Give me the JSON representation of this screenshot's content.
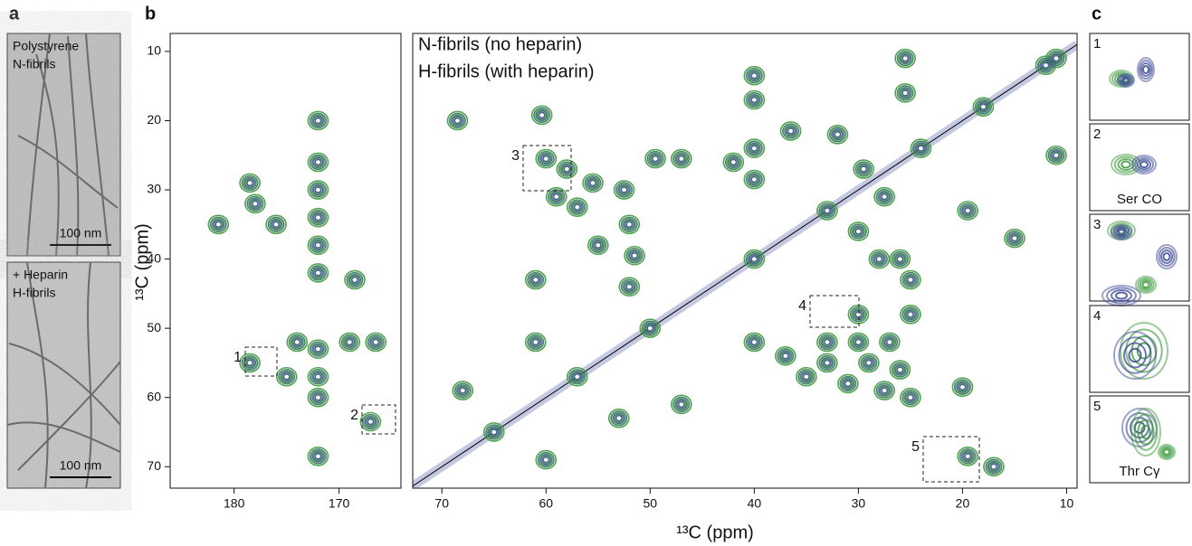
{
  "panel_a": {
    "label": "a",
    "images": [
      {
        "lines": [
          "Polystyrene",
          "N-fibrils"
        ],
        "scale_bar": "100 nm"
      },
      {
        "lines": [
          "+ Heparin",
          "H-fibrils"
        ],
        "scale_bar": "100 nm"
      }
    ]
  },
  "panel_b": {
    "label": "b",
    "boxes": [
      "1",
      "2",
      "3",
      "4",
      "5"
    ]
  },
  "panel_c": {
    "label": "c",
    "insets": [
      {
        "number": "1"
      },
      {
        "number": "2",
        "note": "Ser CO"
      },
      {
        "number": "3"
      },
      {
        "number": "4"
      },
      {
        "number": "5",
        "note": "Thr Cγ"
      }
    ]
  },
  "chart_data": [
    {
      "type": "contour",
      "ylabel": "¹³C (ppm)",
      "xlim": [
        186.1,
        164.1
      ],
      "ylim": [
        7.4,
        73.1
      ],
      "xticks": [
        180,
        170
      ],
      "yticks": [
        10,
        20,
        30,
        40,
        50,
        60,
        70
      ],
      "series": [
        {
          "color": "#3a9a3a",
          "x": [
            181.5,
            178.5,
            178,
            176,
            172,
            172,
            172,
            172,
            172,
            172,
            172,
            172,
            172,
            175,
            169,
            168.5,
            166.5,
            178.5,
            167,
            172,
            174
          ],
          "values": [
            35,
            29,
            32,
            35,
            20,
            26,
            30,
            34,
            38,
            42,
            53,
            57,
            60,
            57,
            52,
            43,
            52,
            55,
            63.5,
            68.5,
            52
          ]
        },
        {
          "color": "#3d4a96",
          "x": [
            181.5,
            178.5,
            178,
            176,
            172,
            172,
            172,
            172,
            172,
            172,
            172,
            172,
            172,
            175,
            169,
            168.5,
            166.5,
            178.5,
            167,
            172,
            174
          ],
          "values": [
            35,
            29,
            32,
            35,
            20,
            26,
            30,
            34,
            38,
            42,
            53,
            57,
            60,
            57,
            52,
            43,
            52,
            55,
            63.5,
            68.5,
            52
          ]
        }
      ]
    },
    {
      "type": "contour",
      "xlabel": "¹³C (ppm)",
      "xlim": [
        72.8,
        9.0
      ],
      "ylim": [
        7.4,
        73.1
      ],
      "xticks": [
        70,
        60,
        50,
        40,
        30,
        20,
        10
      ],
      "diagonal": true,
      "series": [
        {
          "name": "N-fibrils (no heparin)",
          "color": "#3a9a3a",
          "x": [
            68.5,
            60.4,
            60,
            58,
            59,
            57,
            55.5,
            52.5,
            52,
            51.5,
            49.5,
            47,
            61,
            55,
            52,
            40,
            40,
            40,
            40,
            42,
            36.5,
            32,
            29.5,
            30,
            27.5,
            25.5,
            25.5,
            25,
            25,
            19.5,
            15,
            11,
            11,
            30,
            28,
            26,
            65,
            57,
            50,
            40,
            33,
            24,
            18,
            12,
            40,
            37,
            33,
            30,
            27,
            26,
            33,
            29,
            31,
            27.5,
            35,
            20,
            25,
            19.5,
            17,
            60,
            53,
            68,
            61,
            47
          ],
          "values": [
            20,
            19.2,
            25.5,
            27,
            31,
            32.5,
            29,
            30,
            35,
            39.5,
            25.5,
            25.5,
            43,
            38,
            44,
            13.5,
            17,
            24,
            28.5,
            26,
            21.5,
            22,
            27,
            36,
            31,
            11,
            16,
            43,
            48,
            33,
            37,
            11,
            25,
            48,
            40,
            40,
            65,
            57,
            50,
            40,
            33,
            24,
            18,
            12,
            52,
            54,
            52,
            52,
            52,
            56,
            55,
            55,
            58,
            59,
            57,
            58.5,
            60,
            68.5,
            70,
            69,
            63,
            59,
            52,
            61
          ]
        },
        {
          "name": "H-fibrils (with heparin)",
          "color": "#3d4a96",
          "x": [
            68.5,
            60.4,
            60,
            58,
            59,
            57,
            55.5,
            52.5,
            52,
            51.5,
            49.5,
            47,
            61,
            55,
            52,
            40,
            40,
            40,
            40,
            42,
            36.5,
            32,
            29.5,
            30,
            27.5,
            25.5,
            25.5,
            25,
            25,
            19.5,
            15,
            11,
            11,
            30,
            28,
            26,
            65,
            57,
            50,
            40,
            33,
            24,
            18,
            12,
            40,
            37,
            33,
            30,
            27,
            26,
            33,
            29,
            31,
            27.5,
            35,
            20,
            25,
            19.5,
            17,
            60,
            53,
            68,
            61,
            47
          ],
          "values": [
            20,
            19.2,
            25.5,
            27,
            31,
            32.5,
            29,
            30,
            35,
            39.5,
            25.5,
            25.5,
            43,
            38,
            44,
            13.5,
            17,
            24,
            28.5,
            26,
            21.5,
            22,
            27,
            36,
            31,
            11,
            16,
            43,
            48,
            33,
            37,
            11,
            25,
            48,
            40,
            40,
            65,
            57,
            50,
            40,
            33,
            24,
            18,
            12,
            52,
            54,
            52,
            52,
            52,
            56,
            55,
            55,
            58,
            59,
            57,
            58.5,
            60,
            68.5,
            70,
            69,
            63,
            59,
            52,
            61
          ]
        }
      ]
    }
  ]
}
